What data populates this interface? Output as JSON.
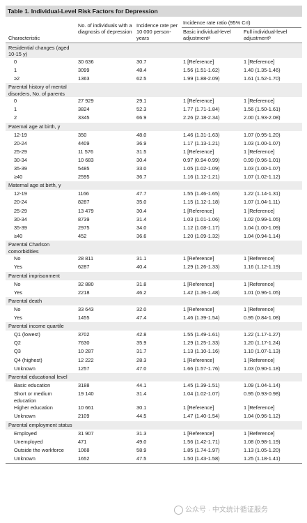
{
  "title": "Table 1. Individual-Level Risk Factors for Depression",
  "headers": {
    "characteristic": "Characteristic",
    "individuals": "No. of individuals with a diagnosis of depression",
    "incidence": "Incidence rate per 10 000 person-years",
    "irr_group": "Incidence rate ratio (95% CrI)",
    "basic": "Basic individual-level adjustmentᵃ",
    "full": "Full individual-level adjustmentᵇ"
  },
  "rows": [
    {
      "type": "section",
      "label": "Residential changes (aged 10-15 y)"
    },
    {
      "type": "sub",
      "label": "0",
      "n": "30 636",
      "rate": "30.7",
      "basic": "1 [Reference]",
      "full": "1 [Reference]"
    },
    {
      "type": "sub",
      "label": "1",
      "n": "3099",
      "rate": "48.4",
      "basic": "1.56 (1.51-1.62)",
      "full": "1.40 (1.35-1.46)"
    },
    {
      "type": "sub",
      "label": "≥2",
      "n": "1363",
      "rate": "62.5",
      "basic": "1.99 (1.88-2.09)",
      "full": "1.61 (1.52-1.70)"
    },
    {
      "type": "section",
      "label": "Parental history of mental disorders, No. of parents"
    },
    {
      "type": "sub",
      "label": "0",
      "n": "27 929",
      "rate": "29.1",
      "basic": "1 [Reference]",
      "full": "1 [Reference]"
    },
    {
      "type": "sub",
      "label": "1",
      "n": "3824",
      "rate": "52.3",
      "basic": "1.77 (1.71-1.84)",
      "full": "1.56 (1.50-1.61)"
    },
    {
      "type": "sub",
      "label": "2",
      "n": "3345",
      "rate": "66.9",
      "basic": "2.26 (2.18-2.34)",
      "full": "2.00 (1.93-2.08)"
    },
    {
      "type": "section",
      "label": "Paternal age at birth, y"
    },
    {
      "type": "sub",
      "label": "12-19",
      "n": "350",
      "rate": "48.0",
      "basic": "1.46 (1.31-1.63)",
      "full": "1.07 (0.95-1.20)"
    },
    {
      "type": "sub",
      "label": "20-24",
      "n": "4409",
      "rate": "36.9",
      "basic": "1.17 (1.13-1.21)",
      "full": "1.03 (1.00-1.07)"
    },
    {
      "type": "sub",
      "label": "25-29",
      "n": "11 576",
      "rate": "31.5",
      "basic": "1 [Reference]",
      "full": "1 [Reference]"
    },
    {
      "type": "sub",
      "label": "30-34",
      "n": "10 683",
      "rate": "30.4",
      "basic": "0.97 (0.94-0.99)",
      "full": "0.99 (0.96-1.01)"
    },
    {
      "type": "sub",
      "label": "35-39",
      "n": "5485",
      "rate": "33.0",
      "basic": "1.05 (1.02-1.09)",
      "full": "1.03 (1.00-1.07)"
    },
    {
      "type": "sub",
      "label": "≥40",
      "n": "2595",
      "rate": "36.7",
      "basic": "1.16 (1.12-1.21)",
      "full": "1.07 (1.02-1.12)"
    },
    {
      "type": "section",
      "label": "Maternal age at birth, y"
    },
    {
      "type": "sub",
      "label": "12-19",
      "n": "1166",
      "rate": "47.7",
      "basic": "1.55 (1.46-1.65)",
      "full": "1.22 (1.14-1.31)"
    },
    {
      "type": "sub",
      "label": "20-24",
      "n": "8287",
      "rate": "35.0",
      "basic": "1.15 (1.12-1.18)",
      "full": "1.07 (1.04-1.11)"
    },
    {
      "type": "sub",
      "label": "25-29",
      "n": "13 479",
      "rate": "30.4",
      "basic": "1 [Reference]",
      "full": "1 [Reference]"
    },
    {
      "type": "sub",
      "label": "30-34",
      "n": "8739",
      "rate": "31.4",
      "basic": "1.03 (1.01-1.06)",
      "full": "1.02 (0.99-1.05)"
    },
    {
      "type": "sub",
      "label": "35-39",
      "n": "2975",
      "rate": "34.0",
      "basic": "1.12 (1.08-1.17)",
      "full": "1.04 (1.00-1.09)"
    },
    {
      "type": "sub",
      "label": "≥40",
      "n": "452",
      "rate": "36.6",
      "basic": "1.20 (1.09-1.32)",
      "full": "1.04 (0.94-1.14)"
    },
    {
      "type": "section",
      "label": "Parental Charlson comorbidities"
    },
    {
      "type": "sub",
      "label": "No",
      "n": "28 811",
      "rate": "31.1",
      "basic": "1 [Reference]",
      "full": "1 [Reference]"
    },
    {
      "type": "sub",
      "label": "Yes",
      "n": "6287",
      "rate": "40.4",
      "basic": "1.29 (1.26-1.33)",
      "full": "1.16 (1.12-1.19)"
    },
    {
      "type": "section",
      "label": "Parental imprisonment"
    },
    {
      "type": "sub",
      "label": "No",
      "n": "32 880",
      "rate": "31.8",
      "basic": "1 [Reference]",
      "full": "1 [Reference]"
    },
    {
      "type": "sub",
      "label": "Yes",
      "n": "2218",
      "rate": "46.2",
      "basic": "1.42 (1.36-1.48)",
      "full": "1.01 (0.96-1.05)"
    },
    {
      "type": "section",
      "label": "Parental death"
    },
    {
      "type": "sub",
      "label": "No",
      "n": "33 643",
      "rate": "32.0",
      "basic": "1 [Reference]",
      "full": "1 [Reference]"
    },
    {
      "type": "sub",
      "label": "Yes",
      "n": "1455",
      "rate": "47.4",
      "basic": "1.46 (1.39-1.54)",
      "full": "0.95 (0.84-1.08)"
    },
    {
      "type": "section",
      "label": "Parental income quartile"
    },
    {
      "type": "sub",
      "label": "Q1 (lowest)",
      "n": "3702",
      "rate": "42.8",
      "basic": "1.55 (1.49-1.61)",
      "full": "1.22 (1.17-1.27)"
    },
    {
      "type": "sub",
      "label": "Q2",
      "n": "7630",
      "rate": "35.9",
      "basic": "1.29 (1.25-1.33)",
      "full": "1.20 (1.17-1.24)"
    },
    {
      "type": "sub",
      "label": "Q3",
      "n": "10 287",
      "rate": "31.7",
      "basic": "1.13 (1.10-1.16)",
      "full": "1.10 (1.07-1.13)"
    },
    {
      "type": "sub",
      "label": "Q4 (highest)",
      "n": "12 222",
      "rate": "28.3",
      "basic": "1 [Reference]",
      "full": "1 [Reference]"
    },
    {
      "type": "sub",
      "label": "Unknown",
      "n": "1257",
      "rate": "47.0",
      "basic": "1.66 (1.57-1.76)",
      "full": "1.03 (0.90-1.18)"
    },
    {
      "type": "section",
      "label": "Parental educational level"
    },
    {
      "type": "sub",
      "label": "Basic education",
      "n": "3188",
      "rate": "44.1",
      "basic": "1.45 (1.39-1.51)",
      "full": "1.09 (1.04-1.14)"
    },
    {
      "type": "sub",
      "label": "Short or medium education",
      "n": "19 140",
      "rate": "31.4",
      "basic": "1.04 (1.02-1.07)",
      "full": "0.95 (0.93-0.98)"
    },
    {
      "type": "sub",
      "label": "Higher education",
      "n": "10 661",
      "rate": "30.1",
      "basic": "1 [Reference]",
      "full": "1 [Reference]"
    },
    {
      "type": "sub",
      "label": "Unknown",
      "n": "2109",
      "rate": "44.5",
      "basic": "1.47 (1.40-1.54)",
      "full": "1.04 (0.96-1.12)"
    },
    {
      "type": "section",
      "label": "Parental employment status"
    },
    {
      "type": "sub",
      "label": "Employed",
      "n": "31 907",
      "rate": "31.3",
      "basic": "1 [Reference]",
      "full": "1 [Reference]"
    },
    {
      "type": "sub",
      "label": "Unemployed",
      "n": "471",
      "rate": "49.0",
      "basic": "1.56 (1.42-1.71)",
      "full": "1.08 (0.98-1.19)"
    },
    {
      "type": "sub",
      "label": "Outside the workforce",
      "n": "1068",
      "rate": "58.9",
      "basic": "1.85 (1.74-1.97)",
      "full": "1.13 (1.05-1.20)"
    },
    {
      "type": "sub",
      "label": "Unknown",
      "n": "1652",
      "rate": "47.5",
      "basic": "1.50 (1.43-1.58)",
      "full": "1.25 (1.18-1.41)"
    }
  ],
  "watermark": "公众号 · 中文统计循证服务"
}
